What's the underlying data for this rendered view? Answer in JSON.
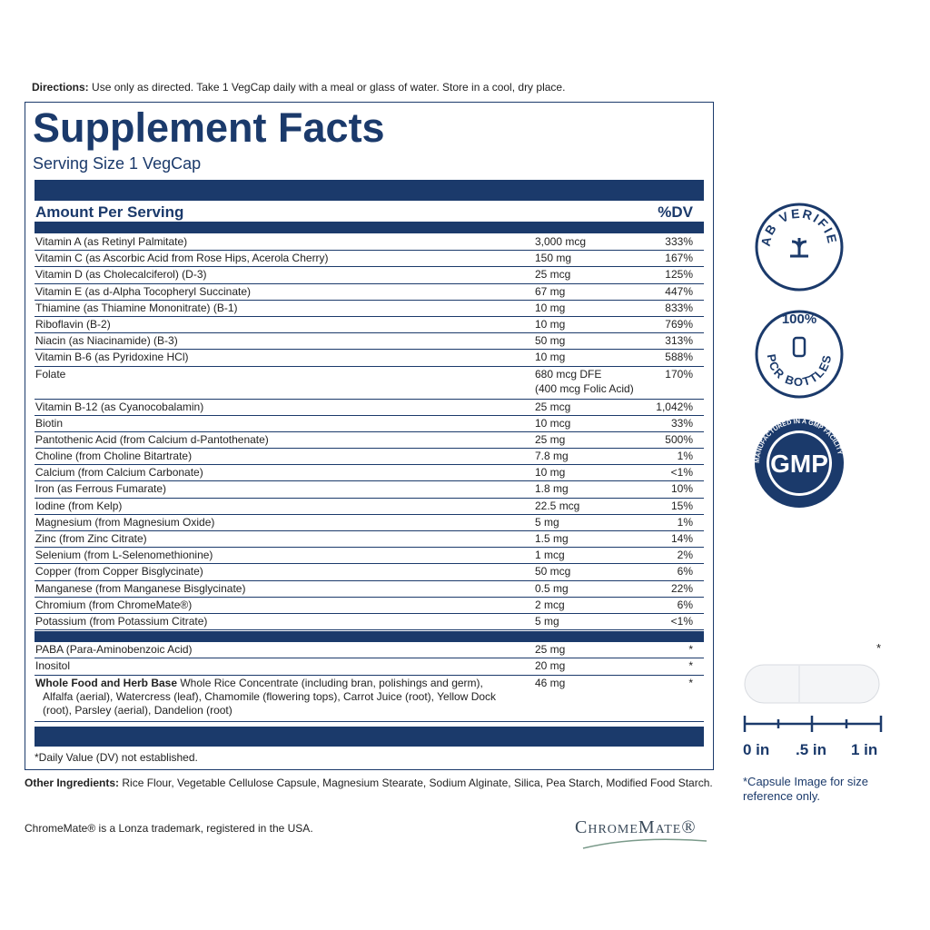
{
  "directions": {
    "label": "Directions:",
    "text": "Use only as directed. Take 1 VegCap daily with a meal or glass of water. Store in a cool, dry place."
  },
  "facts": {
    "title": "Supplement Facts",
    "serving": "Serving Size 1 VegCap",
    "header": {
      "amount": "Amount Per Serving",
      "dv": "%DV"
    },
    "rows": [
      {
        "name": "Vitamin A (as Retinyl Palmitate)",
        "amount": "3,000 mcg",
        "dv": "333%"
      },
      {
        "name": "Vitamin C (as Ascorbic Acid from Rose Hips, Acerola Cherry)",
        "amount": "150 mg",
        "dv": "167%"
      },
      {
        "name": "Vitamin D (as Cholecalciferol) (D-3)",
        "amount": "25 mcg",
        "dv": "125%"
      },
      {
        "name": "Vitamin E (as d-Alpha Tocopheryl Succinate)",
        "amount": "67 mg",
        "dv": "447%"
      },
      {
        "name": "Thiamine (as Thiamine Mononitrate) (B-1)",
        "amount": "10 mg",
        "dv": "833%"
      },
      {
        "name": "Riboflavin (B-2)",
        "amount": "10 mg",
        "dv": "769%"
      },
      {
        "name": "Niacin (as Niacinamide) (B-3)",
        "amount": "50 mg",
        "dv": "313%"
      },
      {
        "name": "Vitamin B-6 (as Pyridoxine HCl)",
        "amount": "10 mg",
        "dv": "588%"
      },
      {
        "name": "Folate",
        "amount": "680 mcg DFE",
        "note": "(400 mcg Folic Acid)",
        "dv": "170%"
      },
      {
        "name": "Vitamin B-12 (as Cyanocobalamin)",
        "amount": "25 mcg",
        "dv": "1,042%"
      },
      {
        "name": "Biotin",
        "amount": "10 mcg",
        "dv": "33%"
      },
      {
        "name": "Pantothenic Acid (from Calcium d-Pantothenate)",
        "amount": "25 mg",
        "dv": "500%"
      },
      {
        "name": "Choline (from Choline Bitartrate)",
        "amount": "7.8 mg",
        "dv": "1%"
      },
      {
        "name": "Calcium (from Calcium Carbonate)",
        "amount": "10 mg",
        "dv": "<1%"
      },
      {
        "name": "Iron (as Ferrous Fumarate)",
        "amount": "1.8 mg",
        "dv": "10%"
      },
      {
        "name": "Iodine (from Kelp)",
        "amount": "22.5 mcg",
        "dv": "15%"
      },
      {
        "name": "Magnesium (from Magnesium Oxide)",
        "amount": "5 mg",
        "dv": "1%"
      },
      {
        "name": "Zinc (from Zinc Citrate)",
        "amount": "1.5 mg",
        "dv": "14%"
      },
      {
        "name": "Selenium (from L-Selenomethionine)",
        "amount": "1 mcg",
        "dv": "2%"
      },
      {
        "name": "Copper (from Copper Bisglycinate)",
        "amount": "50 mcg",
        "dv": "6%"
      },
      {
        "name": "Manganese (from Manganese Bisglycinate)",
        "amount": "0.5 mg",
        "dv": "22%"
      },
      {
        "name": "Chromium (from ChromeMate®)",
        "amount": "2 mcg",
        "dv": "6%"
      },
      {
        "name": "Potassium (from Potassium Citrate)",
        "amount": "5 mg",
        "dv": "<1%"
      }
    ],
    "other_rows": [
      {
        "name": "PABA (Para-Aminobenzoic Acid)",
        "amount": "25 mg",
        "dv": "*"
      },
      {
        "name": "Inositol",
        "amount": "20 mg",
        "dv": "*"
      },
      {
        "bold": "Whole Food and Herb Base",
        "name": "Whole Rice Concentrate (including bran, polishings and germ), Alfalfa (aerial), Watercress (leaf), Chamomile (flowering tops), Carrot Juice (root), Yellow Dock (root), Parsley (aerial), Dandelion (root)",
        "amount": "46 mg",
        "dv": "*"
      }
    ],
    "footnote": "*Daily Value (DV) not established."
  },
  "other_ingredients": {
    "label": "Other Ingredients:",
    "text": "Rice Flour, Vegetable Cellulose Capsule, Magnesium Stearate, Sodium Alginate, Silica, Pea Starch, Modified Food Starch."
  },
  "trademark": "ChromeMate® is a Lonza trademark, registered in the USA.",
  "logo": "ChromeMate®",
  "badges": {
    "lab": "LAB VERIFIED",
    "pcr_top": "100%",
    "pcr_bottom": "PCR BOTTLES",
    "gmp": "GMP",
    "gmp_ring": "MANUFACTURED IN A GMP FACILITY"
  },
  "capsule": {
    "asterisk": "*",
    "scale": [
      "0 in",
      ".5 in",
      "1 in"
    ],
    "note": "*Capsule Image for size reference only."
  }
}
